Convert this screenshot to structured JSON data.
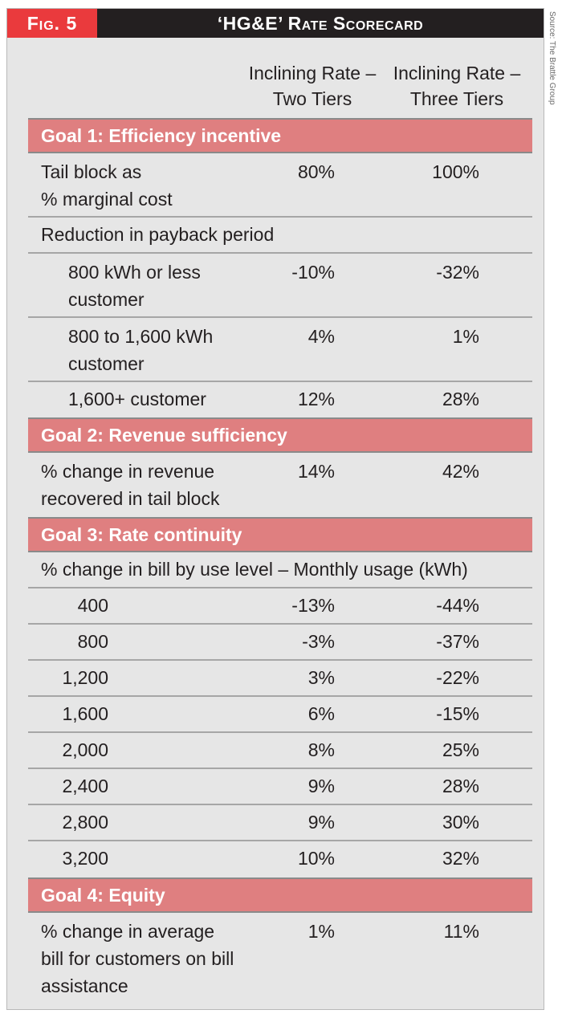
{
  "header": {
    "fig_label": "Fig. 5",
    "title": "‘HG&E’ Rate Scorecard"
  },
  "source": "Source: The Brattle Group",
  "columns": [
    {
      "line1": "Inclining Rate –",
      "line2": "Two Tiers"
    },
    {
      "line1": "Inclining Rate –",
      "line2": "Three Tiers"
    }
  ],
  "goal1": {
    "title": "Goal 1: Efficiency incentive",
    "tail": {
      "line1": "Tail block as",
      "line2": "% marginal cost",
      "two": "80%",
      "three": "100%"
    },
    "payback_label": "Reduction in payback period",
    "p800": {
      "line1": "800 kWh or less",
      "line2": "customer",
      "two": "-10%",
      "three": "-32%"
    },
    "p1600": {
      "line1": "800 to 1,600 kWh",
      "line2": "customer",
      "two": "4%",
      "three": "1%"
    },
    "p1600plus": {
      "label": "1,600+ customer",
      "two": "12%",
      "three": "28%"
    }
  },
  "goal2": {
    "title": "Goal 2: Revenue sufficiency",
    "rev": {
      "line1": "% change in revenue",
      "line2": "recovered in tail block",
      "two": "14%",
      "three": "42%"
    }
  },
  "goal3": {
    "title": "Goal 3: Rate continuity",
    "bill_label": "% change in bill by use level – Monthly usage (kWh)",
    "rows": [
      {
        "usage": "400",
        "two": "-13%",
        "three": "-44%"
      },
      {
        "usage": "800",
        "two": "-3%",
        "three": "-37%"
      },
      {
        "usage": "1,200",
        "two": "3%",
        "three": "-22%"
      },
      {
        "usage": "1,600",
        "two": "6%",
        "three": "-15%"
      },
      {
        "usage": "2,000",
        "two": "8%",
        "three": "25%"
      },
      {
        "usage": "2,400",
        "two": "9%",
        "three": "28%"
      },
      {
        "usage": "2,800",
        "two": "9%",
        "three": "30%"
      },
      {
        "usage": "3,200",
        "two": "10%",
        "three": "32%"
      }
    ]
  },
  "goal4": {
    "title": "Goal 4: Equity",
    "eq": {
      "line1": "% change in average",
      "line2": "bill for customers on bill",
      "line3": "assistance",
      "two": "1%",
      "three": "11%"
    }
  }
}
